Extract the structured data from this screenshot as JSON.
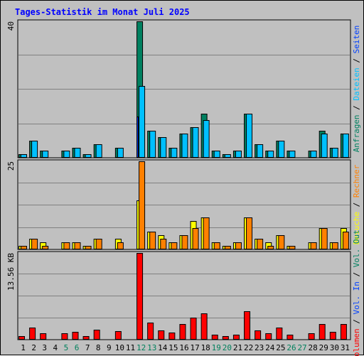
{
  "chart_data": {
    "type": "bar",
    "title": "Tages-Statistik im Monat Juli 2025",
    "categories": [
      "1",
      "2",
      "3",
      "4",
      "5",
      "6",
      "7",
      "8",
      "9",
      "10",
      "11",
      "12",
      "13",
      "14",
      "15",
      "16",
      "17",
      "18",
      "19",
      "20",
      "21",
      "22",
      "23",
      "24",
      "25",
      "26",
      "27",
      "28",
      "29",
      "30",
      "31"
    ],
    "weekend_days": [
      "5",
      "6",
      "12",
      "13",
      "19",
      "20",
      "26",
      "27"
    ],
    "grid": true,
    "panels": [
      {
        "id": "anfragen-dateien-seiten",
        "ymax_label": "40",
        "ylim": [
          0,
          40
        ],
        "series": [
          {
            "name": "Anfragen",
            "color": "#008060",
            "values": [
              1,
              5,
              2,
              0,
              2,
              3,
              1,
              4,
              0,
              3,
              0,
              40,
              8,
              6,
              3,
              7,
              9,
              13,
              2,
              1,
              2,
              13,
              4,
              2,
              5,
              2,
              0,
              2,
              8,
              3,
              7
            ]
          },
          {
            "name": "Dateien",
            "color": "#00c0ff",
            "values": [
              1,
              5,
              2,
              0,
              2,
              3,
              1,
              4,
              0,
              3,
              0,
              21,
              8,
              6,
              3,
              7,
              9,
              11,
              2,
              1,
              2,
              13,
              4,
              2,
              5,
              2,
              0,
              2,
              7,
              3,
              7
            ]
          },
          {
            "name": "Seiten",
            "color": "#0040ff",
            "values": [
              0,
              0,
              0,
              0,
              0,
              0,
              0,
              0,
              0,
              0,
              0,
              12,
              0,
              0,
              0,
              0,
              0,
              0,
              0,
              0,
              0,
              0,
              0,
              0,
              0,
              0,
              0,
              0,
              0,
              0,
              0
            ]
          }
        ],
        "axis_labels": [
          {
            "text": "Anfragen",
            "color": "#008060"
          },
          {
            "text": " / ",
            "color": "#000000"
          },
          {
            "text": "Dateien",
            "color": "#00c0ff"
          },
          {
            "text": " / ",
            "color": "#000000"
          },
          {
            "text": "Seiten",
            "color": "#0040ff"
          }
        ]
      },
      {
        "id": "besuche-rechner",
        "ymax_label": "25",
        "ylim": [
          0,
          25
        ],
        "series": [
          {
            "name": "Besuche",
            "color": "#ffff00",
            "values": [
              1,
              3,
              2,
              0,
              2,
              2,
              1,
              3,
              0,
              3,
              0,
              14,
              5,
              4,
              2,
              4,
              8,
              9,
              2,
              1,
              2,
              9,
              3,
              2,
              4,
              1,
              0,
              2,
              6,
              2,
              6
            ]
          },
          {
            "name": "Rechner",
            "color": "#ff8000",
            "values": [
              1,
              3,
              1,
              0,
              2,
              2,
              1,
              3,
              0,
              2,
              0,
              25,
              5,
              3,
              2,
              4,
              6,
              9,
              2,
              1,
              2,
              9,
              3,
              1,
              4,
              1,
              0,
              2,
              6,
              2,
              5
            ]
          }
        ],
        "axis_labels": [
          {
            "text": "Besuche",
            "color": "#ffff00"
          },
          {
            "text": " / ",
            "color": "#000000"
          },
          {
            "text": "Rechner",
            "color": "#ff8000"
          }
        ]
      },
      {
        "id": "volumen",
        "ymax_label": "13.56 KB",
        "ylim": [
          0,
          13.56
        ],
        "series": [
          {
            "name": "Volumen",
            "color": "#ff0000",
            "values": [
              0.6,
              1.9,
              1.0,
              0,
              1.0,
              1.2,
              0.6,
              1.6,
              0,
              1.3,
              0,
              13.56,
              2.7,
              1.5,
              1.1,
              2.4,
              3.5,
              4.1,
              0.8,
              0.6,
              0.8,
              4.5,
              1.5,
              1.0,
              1.9,
              0.8,
              0,
              1.0,
              2.5,
              1.2,
              2.5
            ]
          },
          {
            "name": "Vol. In",
            "color": "#0040ff",
            "values": [
              0,
              0,
              0,
              0,
              0,
              0,
              0,
              0,
              0,
              0,
              0,
              0,
              0,
              0,
              0,
              0,
              0,
              0,
              0,
              0,
              0,
              0,
              0,
              0,
              0,
              0,
              0,
              0,
              0,
              0,
              0
            ]
          },
          {
            "name": "Vol. Out",
            "color": "#008060",
            "values": [
              0,
              0,
              0,
              0,
              0,
              0,
              0,
              0,
              0,
              0,
              0,
              0,
              0,
              0,
              0,
              0,
              0,
              0,
              0,
              0,
              0,
              0,
              0,
              0,
              0,
              0,
              0,
              0,
              0,
              0,
              0
            ]
          }
        ],
        "axis_labels": [
          {
            "text": "Volumen",
            "color": "#ff0000"
          },
          {
            "text": " / ",
            "color": "#000000"
          },
          {
            "text": "Vol. In",
            "color": "#0040ff"
          },
          {
            "text": " / ",
            "color": "#000000"
          },
          {
            "text": "Vol. Out",
            "color": "#008060"
          }
        ]
      }
    ],
    "colors": {
      "background": "#c0c0c0",
      "title": "#0000ff",
      "weekday_label": "#000000",
      "weekend_label": "#00805c",
      "gridline": "#808080"
    }
  }
}
